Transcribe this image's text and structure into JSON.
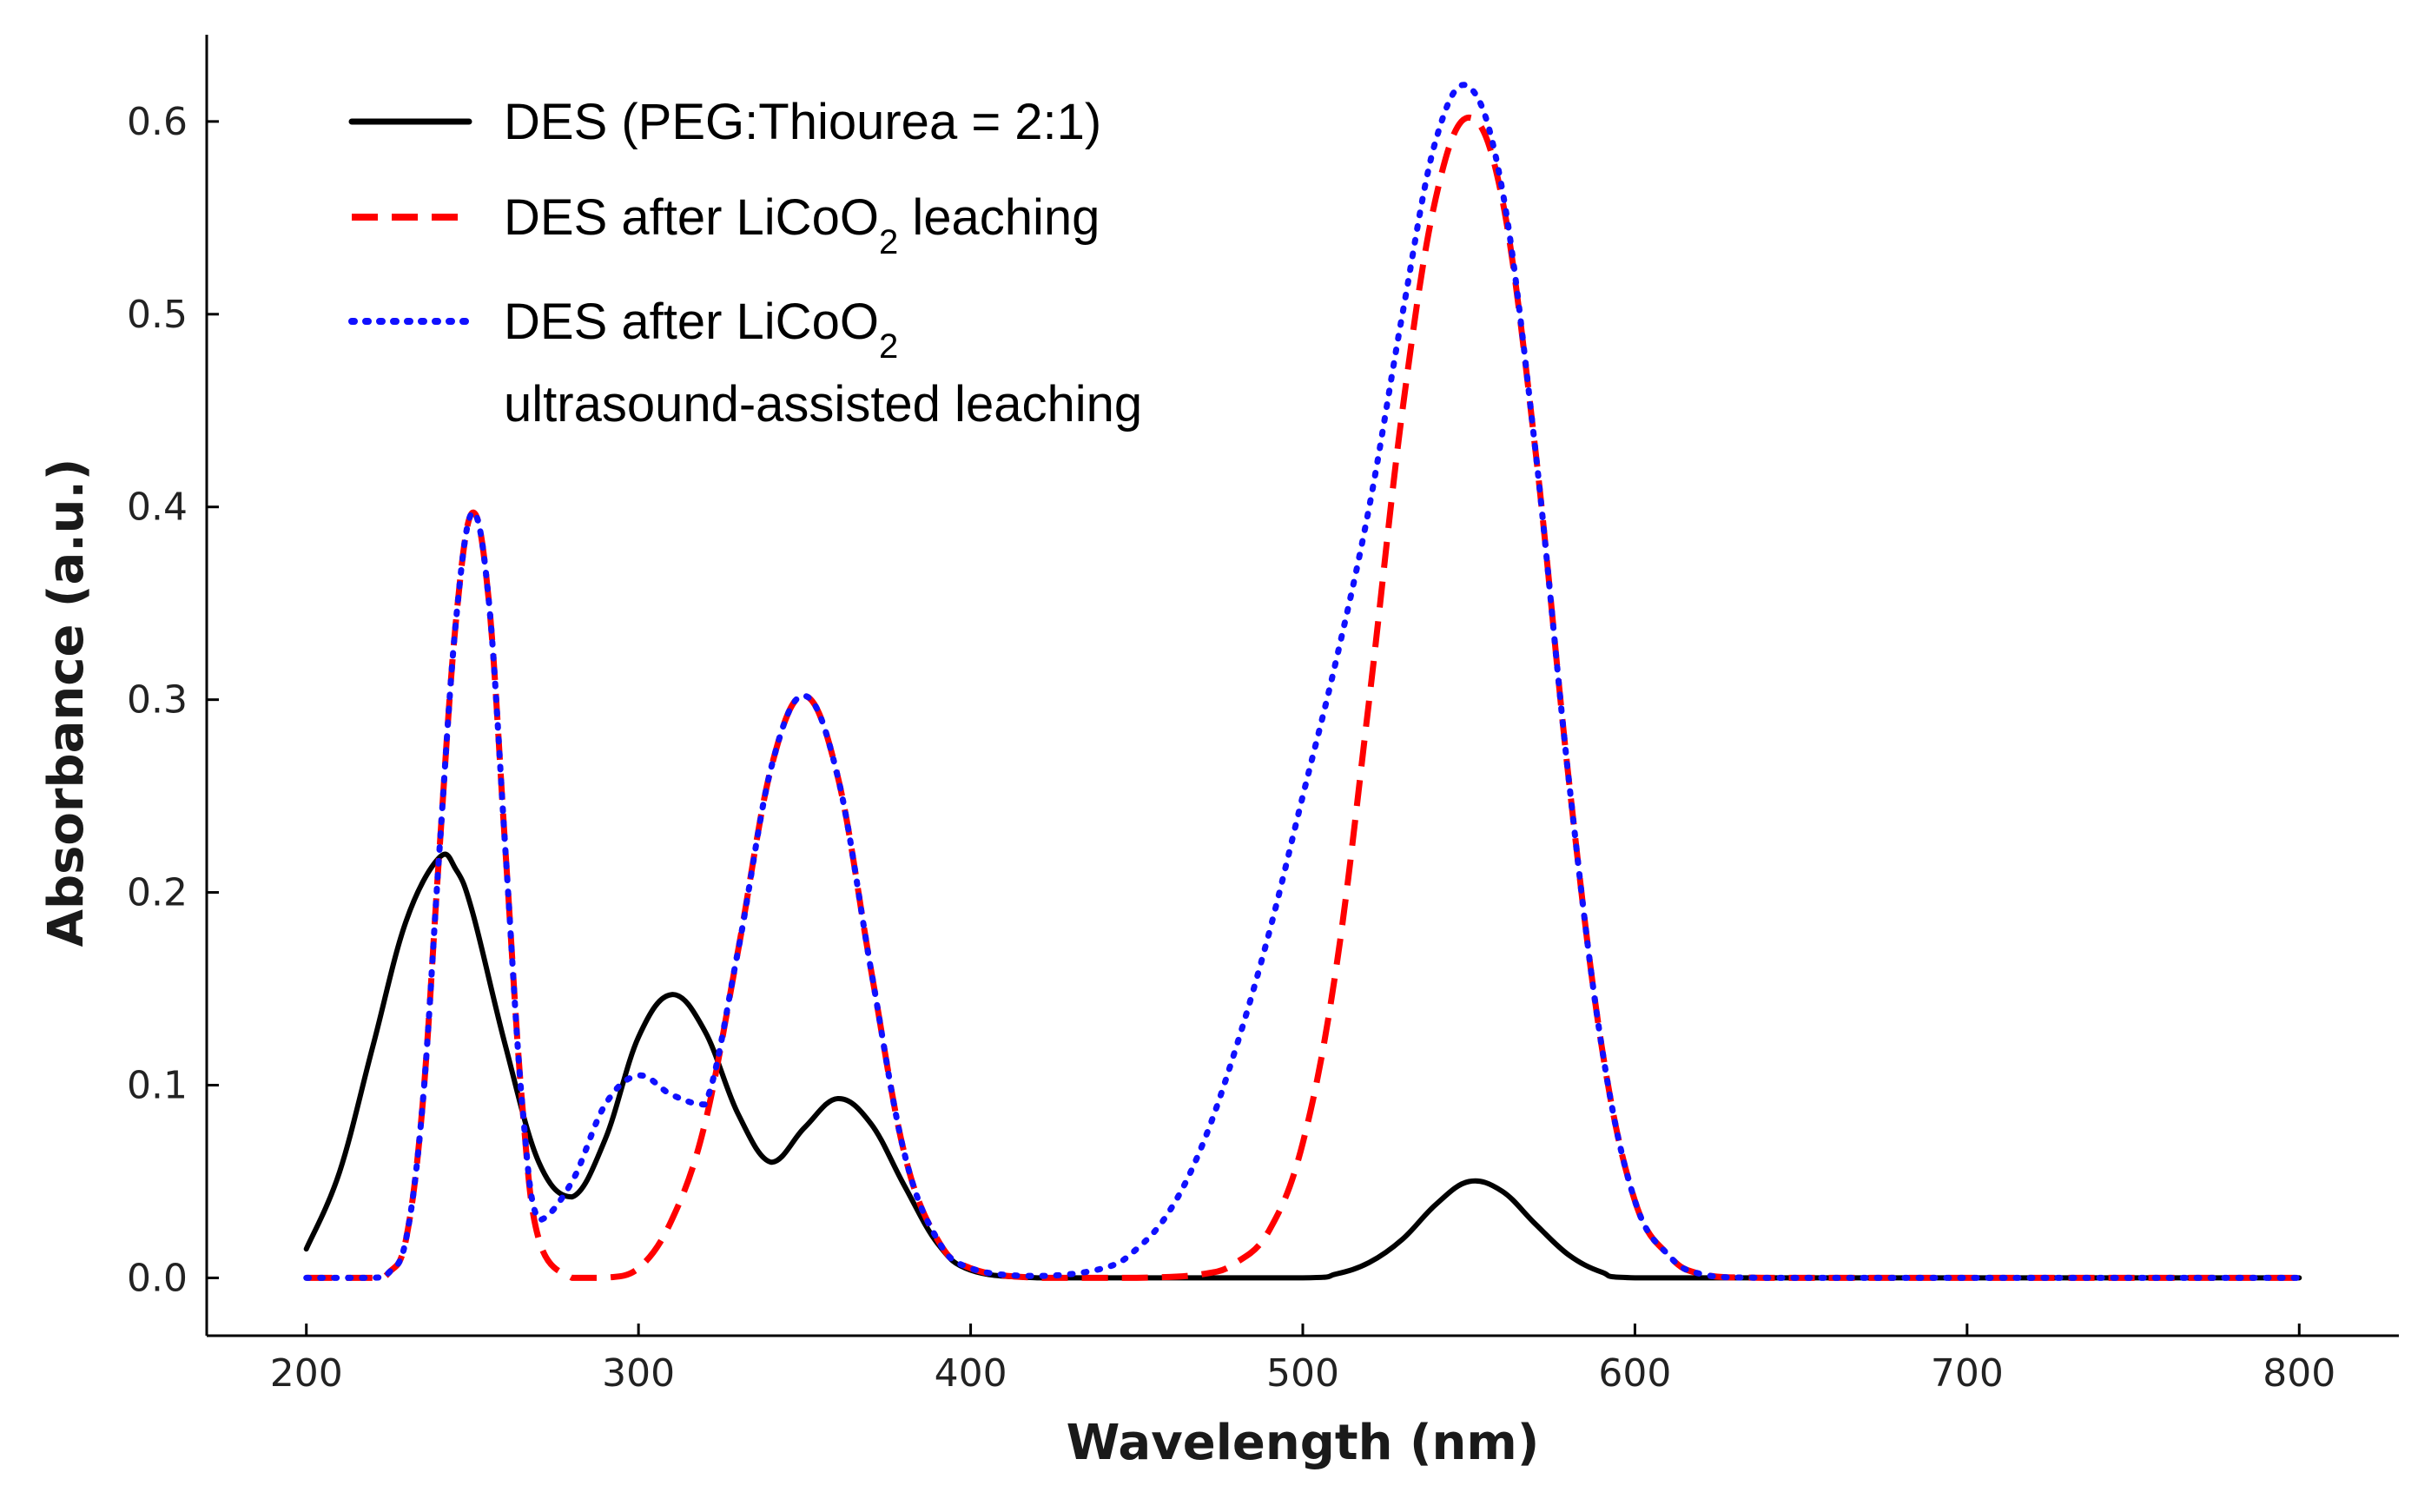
{
  "chart_data": {
    "type": "line",
    "title": "",
    "xlabel": "Wavelength (nm)",
    "ylabel": "Absorbance (a.u.)",
    "xlim": [
      170,
      830
    ],
    "ylim": [
      -0.03,
      0.645
    ],
    "xticks": [
      200,
      300,
      400,
      500,
      600,
      700,
      800
    ],
    "xtick_labels": [
      "200",
      "300",
      "400",
      "500",
      "600",
      "700",
      "800"
    ],
    "yticks": [
      0.0,
      0.1,
      0.2,
      0.3,
      0.4,
      0.5,
      0.6
    ],
    "ytick_labels": [
      "0.0",
      "0.1",
      "0.2",
      "0.3",
      "0.4",
      "0.5",
      "0.6"
    ],
    "grid": false,
    "legend_position": "top-left",
    "series": [
      {
        "name": "DES (PEG:Thiourea = 2:1)",
        "legend_lines": [
          "DES (PEG:Thiourea = 2:1)"
        ],
        "color": "#000000",
        "style": "solid",
        "x": [
          200,
          210,
          220,
          230,
          240,
          245,
          250,
          260,
          270,
          280,
          290,
          300,
          310,
          320,
          330,
          340,
          350,
          360,
          370,
          380,
          390,
          400,
          420,
          450,
          500,
          510,
          520,
          530,
          540,
          550,
          560,
          570,
          580,
          590,
          600,
          650,
          700,
          800
        ],
        "y": [
          0.015,
          0.055,
          0.12,
          0.185,
          0.218,
          0.212,
          0.19,
          0.12,
          0.06,
          0.042,
          0.072,
          0.125,
          0.147,
          0.128,
          0.085,
          0.06,
          0.078,
          0.093,
          0.08,
          0.048,
          0.018,
          0.004,
          0.0,
          0.0,
          0.0,
          0.002,
          0.008,
          0.02,
          0.038,
          0.05,
          0.045,
          0.028,
          0.012,
          0.003,
          0.0,
          0.0,
          0.0,
          0.0
        ]
      },
      {
        "name": "DES after LiCoO2 leaching",
        "legend_lines": [
          "DES after LiCoO",
          "2",
          " leaching"
        ],
        "color": "#ff0000",
        "style": "dashed",
        "x": [
          200,
          220,
          225,
          230,
          235,
          240,
          245,
          250,
          255,
          260,
          265,
          270,
          280,
          290,
          300,
          310,
          320,
          330,
          340,
          350,
          360,
          370,
          380,
          390,
          400,
          420,
          450,
          470,
          480,
          490,
          500,
          510,
          520,
          530,
          540,
          550,
          560,
          570,
          580,
          590,
          600,
          610,
          620,
          640,
          700,
          800
        ],
        "y": [
          0.0,
          0.0,
          0.003,
          0.02,
          0.09,
          0.22,
          0.34,
          0.397,
          0.35,
          0.22,
          0.09,
          0.02,
          0.0,
          0.0,
          0.005,
          0.03,
          0.08,
          0.17,
          0.265,
          0.302,
          0.26,
          0.16,
          0.065,
          0.02,
          0.005,
          0.0,
          0.0,
          0.002,
          0.008,
          0.025,
          0.07,
          0.16,
          0.3,
          0.45,
          0.56,
          0.602,
          0.56,
          0.43,
          0.26,
          0.12,
          0.04,
          0.012,
          0.002,
          0.0,
          0.0,
          0.0
        ]
      },
      {
        "name": "DES after LiCoO2 ultrasound-assisted leaching",
        "legend_lines": [
          "DES after LiCoO",
          "2",
          "ultrasound-assisted leaching"
        ],
        "color": "#1010ff",
        "style": "dotted",
        "x": [
          200,
          220,
          225,
          230,
          235,
          240,
          245,
          250,
          255,
          260,
          265,
          270,
          280,
          290,
          300,
          310,
          320,
          330,
          340,
          350,
          360,
          370,
          380,
          390,
          400,
          420,
          440,
          450,
          460,
          470,
          480,
          490,
          500,
          510,
          520,
          530,
          540,
          550,
          560,
          570,
          580,
          590,
          600,
          610,
          620,
          640,
          700,
          800
        ],
        "y": [
          0.0,
          0.0,
          0.003,
          0.02,
          0.09,
          0.22,
          0.34,
          0.397,
          0.35,
          0.22,
          0.09,
          0.03,
          0.05,
          0.09,
          0.105,
          0.095,
          0.09,
          0.17,
          0.265,
          0.302,
          0.26,
          0.16,
          0.065,
          0.02,
          0.005,
          0.001,
          0.005,
          0.015,
          0.035,
          0.07,
          0.12,
          0.18,
          0.25,
          0.32,
          0.4,
          0.5,
          0.59,
          0.618,
          0.565,
          0.43,
          0.26,
          0.12,
          0.04,
          0.012,
          0.002,
          0.0,
          0.0,
          0.0
        ]
      }
    ]
  }
}
